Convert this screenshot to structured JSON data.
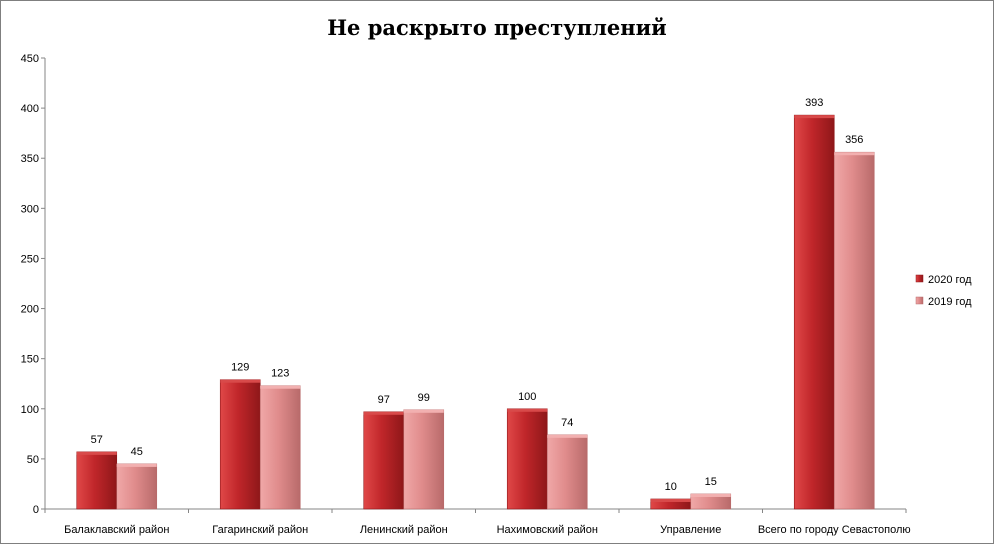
{
  "chart_data": {
    "type": "bar",
    "title": "Не раскрыто  преступлений",
    "categories": [
      "Балаклавский район",
      "Гагаринский район",
      "Ленинский район",
      "Нахимовский район",
      "Управление",
      "Всего по городу Севастополю"
    ],
    "series": [
      {
        "name": "2020 год",
        "values": [
          57,
          129,
          97,
          100,
          10,
          393
        ],
        "color": "#c0262a"
      },
      {
        "name": "2019 год",
        "values": [
          45,
          123,
          99,
          74,
          15,
          356
        ],
        "color": "#e08c8c"
      }
    ],
    "yticks": [
      0,
      50,
      100,
      150,
      200,
      250,
      300,
      350,
      400,
      450
    ],
    "ylim": [
      0,
      450
    ],
    "xlabel": "",
    "ylabel": "",
    "grid": false,
    "legend_position": "right",
    "data_labels": true
  }
}
